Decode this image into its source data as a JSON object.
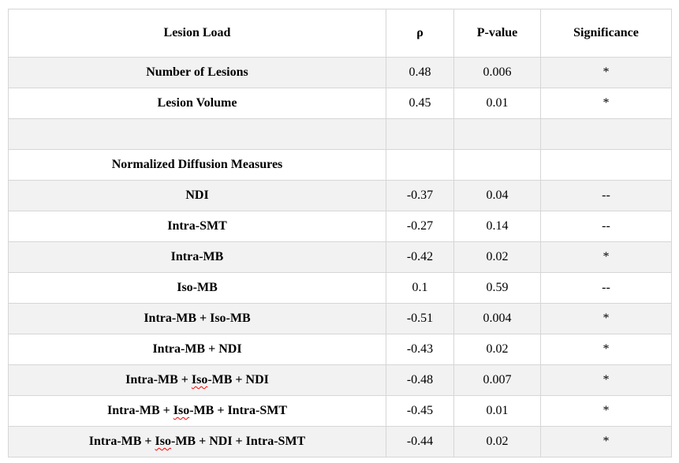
{
  "table": {
    "columns": [
      "Lesion Load",
      "ρ",
      "P-value",
      "Significance"
    ],
    "rows": [
      {
        "label": "Number of Lesions",
        "rho": "0.48",
        "p_value": "0.006",
        "significance": "*",
        "shaded": true
      },
      {
        "label": "Lesion Volume",
        "rho": "0.45",
        "p_value": "0.01",
        "significance": "*",
        "shaded": false
      },
      {
        "label": "",
        "rho": "",
        "p_value": "",
        "significance": "",
        "shaded": true
      },
      {
        "label": "Normalized Diffusion Measures",
        "rho": "",
        "p_value": "",
        "significance": "",
        "shaded": false
      },
      {
        "label": "NDI",
        "rho": "-0.37",
        "p_value": "0.04",
        "significance": "--",
        "shaded": true
      },
      {
        "label": "Intra-SMT",
        "rho": "-0.27",
        "p_value": "0.14",
        "significance": "--",
        "shaded": false
      },
      {
        "label": "Intra-MB",
        "rho": "-0.42",
        "p_value": "0.02",
        "significance": "*",
        "shaded": true
      },
      {
        "label": "Iso-MB",
        "rho": "0.1",
        "p_value": "0.59",
        "significance": "--",
        "shaded": false
      },
      {
        "label": "Intra-MB + Iso-MB",
        "rho": "-0.51",
        "p_value": "0.004",
        "significance": "*",
        "shaded": true
      },
      {
        "label": "Intra-MB + NDI",
        "rho": "-0.43",
        "p_value": "0.02",
        "significance": "*",
        "shaded": false
      },
      {
        "label": "Intra-MB + Iso-MB + NDI",
        "rho": "-0.48",
        "p_value": "0.007",
        "significance": "*",
        "shaded": true,
        "squiggle": "Iso"
      },
      {
        "label": "Intra-MB + Iso-MB + Intra-SMT",
        "rho": "-0.45",
        "p_value": "0.01",
        "significance": "*",
        "shaded": false,
        "squiggle": "Iso"
      },
      {
        "label": "Intra-MB + Iso-MB + NDI + Intra-SMT",
        "rho": "-0.44",
        "p_value": "0.02",
        "significance": "*",
        "shaded": true,
        "squiggle": "Iso"
      }
    ],
    "colors": {
      "shaded_row": "#f2f2f2",
      "border": "#d6d6d6",
      "text": "#000000",
      "spellcheck_underline": "#ff0000"
    }
  }
}
